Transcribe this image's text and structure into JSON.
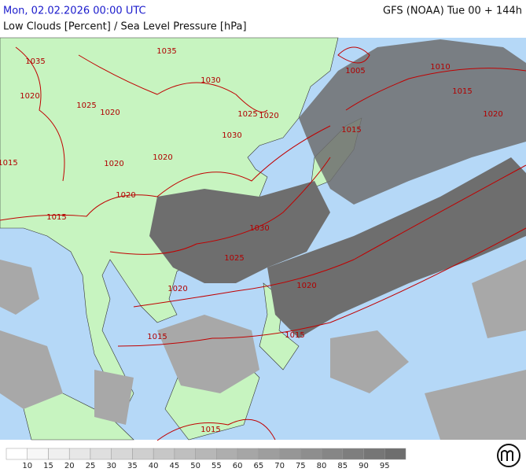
{
  "header": {
    "title": "Mon, 02.02.2026 00:00 UTC",
    "model": "GFS (NOAA) Tue 00 + 144h",
    "subtitle": "Low Clouds [Percent] / Sea Level Pressure [hPa]"
  },
  "isobar_labels": [
    "1015",
    "1015",
    "1020",
    "1025",
    "1020",
    "1020",
    "1020",
    "1020",
    "1030",
    "1025",
    "1020",
    "1030",
    "1025",
    "1020",
    "1015",
    "1020",
    "1015",
    "1015",
    "1015",
    "1005",
    "1010",
    "1015",
    "1020",
    "1035",
    "1035",
    "1030"
  ],
  "legend": {
    "ticks": [
      10,
      15,
      20,
      25,
      30,
      35,
      40,
      45,
      50,
      55,
      60,
      65,
      70,
      75,
      80,
      85,
      90,
      95
    ]
  }
}
